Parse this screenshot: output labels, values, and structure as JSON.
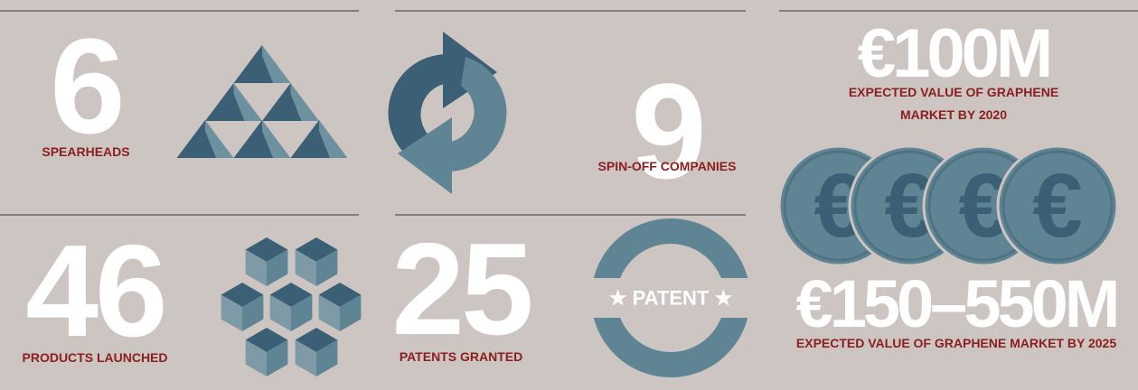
{
  "stats": [
    {
      "value": 6,
      "label": "SPEARHEADS"
    },
    {
      "value": 9,
      "label": "SPIN-OFF COMPANIES"
    },
    {
      "value": 46,
      "label": "PRODUCTS LAUNCHED"
    },
    {
      "value": 25,
      "label": "PATENTS GRANTED"
    }
  ],
  "market": [
    {
      "value": "€100M",
      "label": "EXPECTED VALUE OF GRAPHENE MARKET BY 2020"
    },
    {
      "value": "€150–550M",
      "label": "EXPECTED VALUE OF GRAPHENE MARKET BY 2025"
    }
  ],
  "coin_symbol": "€",
  "patent_badge": "★ PATENT ★"
}
